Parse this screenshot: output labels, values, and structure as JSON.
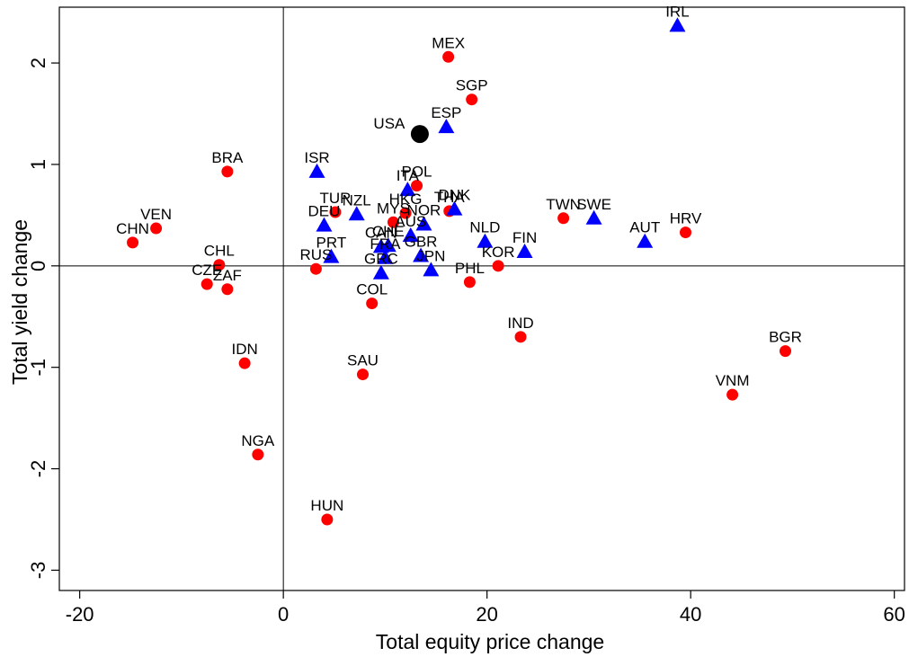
{
  "chart_data": {
    "type": "scatter",
    "title": "",
    "xlabel": "Total equity price change",
    "ylabel": "Total yield change",
    "xlim": [
      -22,
      61
    ],
    "ylim": [
      -3.2,
      2.55
    ],
    "xticks": [
      -20,
      0,
      20,
      40,
      60
    ],
    "yticks": [
      -3,
      -2,
      -1,
      0,
      1,
      2
    ],
    "reference_lines": {
      "x": 0,
      "y": 0
    },
    "colors": {
      "circle": "#ff0000",
      "triangle": "#0000ff",
      "highlight": "#000000"
    },
    "points": [
      {
        "label": "IRL",
        "x": 38.7,
        "y": 2.37,
        "marker": "triangle"
      },
      {
        "label": "MEX",
        "x": 16.2,
        "y": 2.06,
        "marker": "circle"
      },
      {
        "label": "SGP",
        "x": 18.5,
        "y": 1.64,
        "marker": "circle"
      },
      {
        "label": "ESP",
        "x": 16.0,
        "y": 1.37,
        "marker": "triangle"
      },
      {
        "label": "USA",
        "x": 13.4,
        "y": 1.3,
        "marker": "highlight"
      },
      {
        "label": "BRA",
        "x": -5.5,
        "y": 0.93,
        "marker": "circle"
      },
      {
        "label": "ISR",
        "x": 3.3,
        "y": 0.93,
        "marker": "triangle"
      },
      {
        "label": "POL",
        "x": 13.1,
        "y": 0.79,
        "marker": "circle"
      },
      {
        "label": "ITA",
        "x": 12.2,
        "y": 0.75,
        "marker": "triangle"
      },
      {
        "label": "TUR",
        "x": 5.1,
        "y": 0.53,
        "marker": "circle"
      },
      {
        "label": "NZL",
        "x": 7.2,
        "y": 0.51,
        "marker": "triangle"
      },
      {
        "label": "HKG",
        "x": 12.0,
        "y": 0.52,
        "marker": "circle"
      },
      {
        "label": "THA",
        "x": 16.3,
        "y": 0.54,
        "marker": "circle"
      },
      {
        "label": "DNK",
        "x": 16.8,
        "y": 0.56,
        "marker": "triangle"
      },
      {
        "label": "DEU",
        "x": 4.0,
        "y": 0.4,
        "marker": "triangle"
      },
      {
        "label": "MYS",
        "x": 10.8,
        "y": 0.43,
        "marker": "circle"
      },
      {
        "label": "NOR",
        "x": 13.8,
        "y": 0.41,
        "marker": "triangle"
      },
      {
        "label": "AUS",
        "x": 12.5,
        "y": 0.3,
        "marker": "triangle"
      },
      {
        "label": "TWN",
        "x": 27.5,
        "y": 0.47,
        "marker": "circle"
      },
      {
        "label": "SWE",
        "x": 30.5,
        "y": 0.47,
        "marker": "triangle"
      },
      {
        "label": "HRV",
        "x": 39.5,
        "y": 0.33,
        "marker": "circle"
      },
      {
        "label": "AUT",
        "x": 35.5,
        "y": 0.24,
        "marker": "triangle"
      },
      {
        "label": "NLD",
        "x": 19.8,
        "y": 0.24,
        "marker": "triangle"
      },
      {
        "label": "FIN",
        "x": 23.7,
        "y": 0.14,
        "marker": "triangle"
      },
      {
        "label": "CHN",
        "x": -14.8,
        "y": 0.23,
        "marker": "circle"
      },
      {
        "label": "VEN",
        "x": -12.5,
        "y": 0.37,
        "marker": "circle"
      },
      {
        "label": "CHL",
        "x": -6.3,
        "y": 0.01,
        "marker": "circle"
      },
      {
        "label": "CZE",
        "x": -7.5,
        "y": -0.18,
        "marker": "circle"
      },
      {
        "label": "ZAF",
        "x": -5.5,
        "y": -0.23,
        "marker": "circle"
      },
      {
        "label": "RUS",
        "x": 3.2,
        "y": -0.03,
        "marker": "circle"
      },
      {
        "label": "PRT",
        "x": 4.7,
        "y": 0.09,
        "marker": "triangle"
      },
      {
        "label": "CAN",
        "x": 9.6,
        "y": 0.19,
        "marker": "triangle"
      },
      {
        "label": "CHE",
        "x": 10.3,
        "y": 0.2,
        "marker": "triangle"
      },
      {
        "label": "GBR",
        "x": 13.5,
        "y": 0.1,
        "marker": "triangle"
      },
      {
        "label": "FRA",
        "x": 10.0,
        "y": 0.08,
        "marker": "triangle"
      },
      {
        "label": "GRC",
        "x": 9.6,
        "y": -0.07,
        "marker": "triangle"
      },
      {
        "label": "JPN",
        "x": 14.5,
        "y": -0.04,
        "marker": "triangle"
      },
      {
        "label": "COL",
        "x": 8.7,
        "y": -0.37,
        "marker": "circle"
      },
      {
        "label": "KOR",
        "x": 21.1,
        "y": 0.0,
        "marker": "circle"
      },
      {
        "label": "PHL",
        "x": 18.3,
        "y": -0.16,
        "marker": "circle"
      },
      {
        "label": "IND",
        "x": 23.3,
        "y": -0.7,
        "marker": "circle"
      },
      {
        "label": "BGR",
        "x": 49.3,
        "y": -0.84,
        "marker": "circle"
      },
      {
        "label": "VNM",
        "x": 44.1,
        "y": -1.27,
        "marker": "circle"
      },
      {
        "label": "IDN",
        "x": -3.8,
        "y": -0.96,
        "marker": "circle"
      },
      {
        "label": "SAU",
        "x": 7.8,
        "y": -1.07,
        "marker": "circle"
      },
      {
        "label": "NGA",
        "x": -2.5,
        "y": -1.86,
        "marker": "circle"
      },
      {
        "label": "HUN",
        "x": 4.3,
        "y": -2.5,
        "marker": "circle"
      }
    ]
  }
}
